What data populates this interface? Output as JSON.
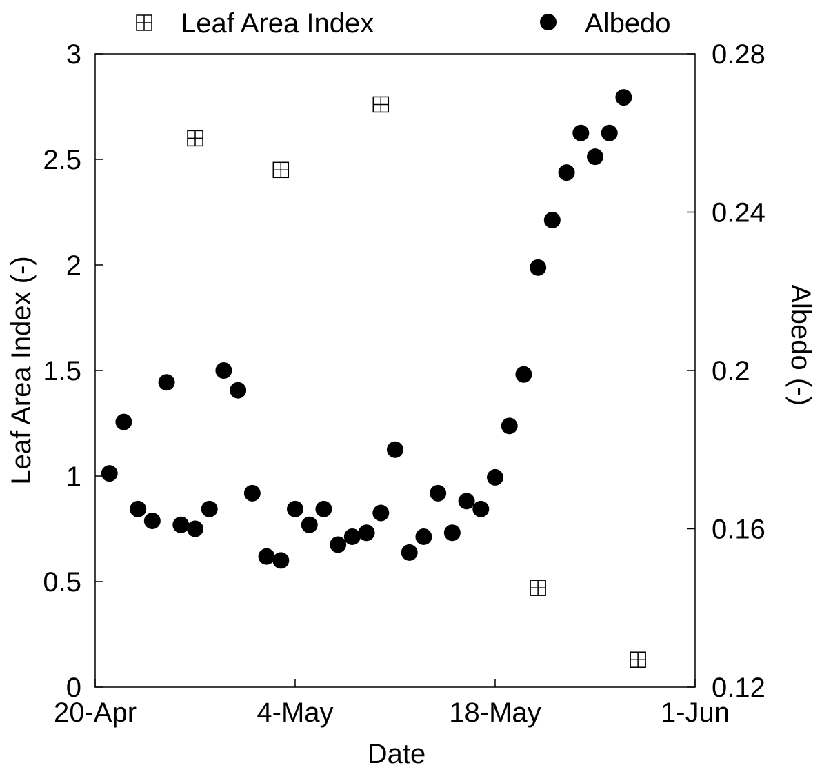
{
  "chart_data": {
    "type": "scatter",
    "title": "",
    "xlabel": "Date",
    "ylabel": "Leaf Area Index (-)",
    "y2label": "Albedo (-)",
    "x_axis": {
      "type": "date",
      "range": [
        "2000-04-20",
        "2000-06-01"
      ],
      "ticks": [
        "2000-04-20",
        "2000-05-04",
        "2000-05-18",
        "2000-06-01"
      ],
      "tick_labels": [
        "20-Apr",
        "4-May",
        "18-May",
        "1-Jun"
      ]
    },
    "ylim": [
      0,
      3
    ],
    "y_ticks": [
      0,
      0.5,
      1,
      1.5,
      2,
      2.5,
      3
    ],
    "y_tick_labels": [
      "0",
      "0.5",
      "1",
      "1.5",
      "2",
      "2.5",
      "3"
    ],
    "y2lim": [
      0.12,
      0.28
    ],
    "y2_ticks": [
      0.12,
      0.16,
      0.2,
      0.24,
      0.28
    ],
    "y2_tick_labels": [
      "0.12",
      "0.16",
      "0.2",
      "0.24",
      "0.28"
    ],
    "grid": false,
    "legend": {
      "placement": "top",
      "entries": [
        "Leaf Area Index",
        "Albedo"
      ]
    },
    "series": [
      {
        "name": "Leaf Area Index",
        "axis": "left",
        "marker": "boxed-cross",
        "color": "#000000",
        "points": [
          {
            "x": "2000-04-27",
            "y": 2.6
          },
          {
            "x": "2000-05-03",
            "y": 2.45
          },
          {
            "x": "2000-05-10",
            "y": 2.76
          },
          {
            "x": "2000-05-21",
            "y": 0.47
          },
          {
            "x": "2000-05-28",
            "y": 0.13
          }
        ]
      },
      {
        "name": "Albedo",
        "axis": "right",
        "marker": "filled-circle",
        "color": "#000000",
        "points": [
          {
            "x": "2000-04-21",
            "y": 0.174
          },
          {
            "x": "2000-04-22",
            "y": 0.187
          },
          {
            "x": "2000-04-23",
            "y": 0.165
          },
          {
            "x": "2000-04-24",
            "y": 0.162
          },
          {
            "x": "2000-04-25",
            "y": 0.197
          },
          {
            "x": "2000-04-26",
            "y": 0.161
          },
          {
            "x": "2000-04-27",
            "y": 0.16
          },
          {
            "x": "2000-04-28",
            "y": 0.165
          },
          {
            "x": "2000-04-29",
            "y": 0.2
          },
          {
            "x": "2000-04-30",
            "y": 0.195
          },
          {
            "x": "2000-05-01",
            "y": 0.169
          },
          {
            "x": "2000-05-02",
            "y": 0.153
          },
          {
            "x": "2000-05-03",
            "y": 0.152
          },
          {
            "x": "2000-05-04",
            "y": 0.165
          },
          {
            "x": "2000-05-05",
            "y": 0.161
          },
          {
            "x": "2000-05-06",
            "y": 0.165
          },
          {
            "x": "2000-05-07",
            "y": 0.156
          },
          {
            "x": "2000-05-08",
            "y": 0.158
          },
          {
            "x": "2000-05-09",
            "y": 0.159
          },
          {
            "x": "2000-05-10",
            "y": 0.164
          },
          {
            "x": "2000-05-11",
            "y": 0.18
          },
          {
            "x": "2000-05-12",
            "y": 0.154
          },
          {
            "x": "2000-05-13",
            "y": 0.158
          },
          {
            "x": "2000-05-14",
            "y": 0.169
          },
          {
            "x": "2000-05-15",
            "y": 0.159
          },
          {
            "x": "2000-05-16",
            "y": 0.167
          },
          {
            "x": "2000-05-17",
            "y": 0.165
          },
          {
            "x": "2000-05-18",
            "y": 0.173
          },
          {
            "x": "2000-05-19",
            "y": 0.186
          },
          {
            "x": "2000-05-20",
            "y": 0.199
          },
          {
            "x": "2000-05-21",
            "y": 0.226
          },
          {
            "x": "2000-05-22",
            "y": 0.238
          },
          {
            "x": "2000-05-23",
            "y": 0.25
          },
          {
            "x": "2000-05-24",
            "y": 0.26
          },
          {
            "x": "2000-05-25",
            "y": 0.254
          },
          {
            "x": "2000-05-26",
            "y": 0.26
          },
          {
            "x": "2000-05-27",
            "y": 0.269
          }
        ]
      }
    ]
  }
}
